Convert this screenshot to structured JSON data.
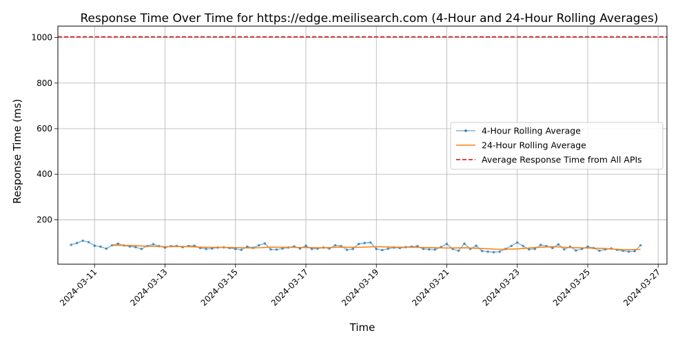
{
  "chart_data": {
    "type": "line",
    "title": "Response Time Over Time for https://edge.meilisearch.com (4-Hour and 24-Hour Rolling Averages)",
    "xlabel": "Time",
    "ylabel": "Response Time (ms)",
    "x_type": "date",
    "xlim": [
      "2024-03-09T23:00",
      "2024-03-27T06:00"
    ],
    "ylim": [
      5,
      1050
    ],
    "x_ticks": [
      "2024-03-11",
      "2024-03-13",
      "2024-03-15",
      "2024-03-17",
      "2024-03-19",
      "2024-03-21",
      "2024-03-23",
      "2024-03-25",
      "2024-03-27"
    ],
    "y_ticks": [
      200,
      400,
      600,
      800,
      1000
    ],
    "grid": true,
    "legend_position": "center-right",
    "series": [
      {
        "name": "4-Hour Rolling Average",
        "color": "#1f77b4",
        "style": "line-with-markers",
        "x": [
          "2024-03-10T08:00",
          "2024-03-10T12:00",
          "2024-03-10T16:00",
          "2024-03-10T20:00",
          "2024-03-11T00:00",
          "2024-03-11T04:00",
          "2024-03-11T08:00",
          "2024-03-11T12:00",
          "2024-03-11T16:00",
          "2024-03-11T20:00",
          "2024-03-12T00:00",
          "2024-03-12T04:00",
          "2024-03-12T08:00",
          "2024-03-12T12:00",
          "2024-03-12T16:00",
          "2024-03-12T20:00",
          "2024-03-13T00:00",
          "2024-03-13T04:00",
          "2024-03-13T08:00",
          "2024-03-13T12:00",
          "2024-03-13T16:00",
          "2024-03-13T20:00",
          "2024-03-14T00:00",
          "2024-03-14T04:00",
          "2024-03-14T08:00",
          "2024-03-14T12:00",
          "2024-03-14T16:00",
          "2024-03-14T20:00",
          "2024-03-15T00:00",
          "2024-03-15T04:00",
          "2024-03-15T08:00",
          "2024-03-15T12:00",
          "2024-03-15T16:00",
          "2024-03-15T20:00",
          "2024-03-16T00:00",
          "2024-03-16T04:00",
          "2024-03-16T08:00",
          "2024-03-16T12:00",
          "2024-03-16T16:00",
          "2024-03-16T20:00",
          "2024-03-17T00:00",
          "2024-03-17T04:00",
          "2024-03-17T08:00",
          "2024-03-17T12:00",
          "2024-03-17T16:00",
          "2024-03-17T20:00",
          "2024-03-18T00:00",
          "2024-03-18T04:00",
          "2024-03-18T08:00",
          "2024-03-18T12:00",
          "2024-03-18T16:00",
          "2024-03-18T20:00",
          "2024-03-19T00:00",
          "2024-03-19T04:00",
          "2024-03-19T08:00",
          "2024-03-19T12:00",
          "2024-03-19T16:00",
          "2024-03-19T20:00",
          "2024-03-20T00:00",
          "2024-03-20T04:00",
          "2024-03-20T08:00",
          "2024-03-20T12:00",
          "2024-03-20T16:00",
          "2024-03-20T20:00",
          "2024-03-21T00:00",
          "2024-03-21T04:00",
          "2024-03-21T08:00",
          "2024-03-21T12:00",
          "2024-03-21T16:00",
          "2024-03-21T20:00",
          "2024-03-22T00:00",
          "2024-03-22T04:00",
          "2024-03-22T08:00",
          "2024-03-22T12:00",
          "2024-03-22T16:00",
          "2024-03-22T20:00",
          "2024-03-23T00:00",
          "2024-03-23T04:00",
          "2024-03-23T08:00",
          "2024-03-23T12:00",
          "2024-03-23T16:00",
          "2024-03-23T20:00",
          "2024-03-24T00:00",
          "2024-03-24T04:00",
          "2024-03-24T08:00",
          "2024-03-24T12:00",
          "2024-03-24T16:00",
          "2024-03-24T20:00",
          "2024-03-25T00:00",
          "2024-03-25T04:00",
          "2024-03-25T08:00",
          "2024-03-25T12:00",
          "2024-03-25T16:00",
          "2024-03-25T20:00",
          "2024-03-26T00:00",
          "2024-03-26T04:00",
          "2024-03-26T08:00",
          "2024-03-26T12:00"
        ],
        "values": [
          90,
          98,
          108,
          102,
          86,
          82,
          73,
          88,
          95,
          87,
          83,
          80,
          72,
          85,
          93,
          84,
          78,
          84,
          85,
          80,
          85,
          86,
          76,
          72,
          74,
          78,
          79,
          76,
          72,
          68,
          82,
          77,
          88,
          96,
          70,
          69,
          74,
          78,
          83,
          74,
          86,
          72,
          74,
          78,
          74,
          88,
          84,
          68,
          72,
          94,
          98,
          100,
          72,
          67,
          73,
          78,
          76,
          80,
          82,
          84,
          72,
          70,
          69,
          80,
          94,
          72,
          64,
          95,
          72,
          86,
          63,
          60,
          58,
          60,
          72,
          85,
          100,
          85,
          70,
          72,
          90,
          84,
          76,
          92,
          70,
          82,
          65,
          72,
          82,
          76,
          64,
          70,
          74,
          68,
          64,
          60,
          62,
          88
        ]
      },
      {
        "name": "24-Hour Rolling Average",
        "color": "#ff7f0e",
        "style": "line",
        "x": [
          "2024-03-11T12:00",
          "2024-03-12T00:00",
          "2024-03-12T12:00",
          "2024-03-13T00:00",
          "2024-03-13T12:00",
          "2024-03-14T00:00",
          "2024-03-14T12:00",
          "2024-03-15T00:00",
          "2024-03-15T12:00",
          "2024-03-16T00:00",
          "2024-03-16T12:00",
          "2024-03-17T00:00",
          "2024-03-17T12:00",
          "2024-03-18T00:00",
          "2024-03-18T12:00",
          "2024-03-19T00:00",
          "2024-03-19T12:00",
          "2024-03-20T00:00",
          "2024-03-20T12:00",
          "2024-03-21T00:00",
          "2024-03-21T12:00",
          "2024-03-22T00:00",
          "2024-03-22T12:00",
          "2024-03-23T00:00",
          "2024-03-23T12:00",
          "2024-03-24T00:00",
          "2024-03-24T12:00",
          "2024-03-25T00:00",
          "2024-03-25T12:00",
          "2024-03-26T00:00",
          "2024-03-26T12:00"
        ],
        "values": [
          88,
          87,
          84,
          82,
          83,
          80,
          79,
          78,
          76,
          80,
          79,
          78,
          77,
          80,
          79,
          82,
          80,
          79,
          78,
          76,
          77,
          74,
          70,
          72,
          78,
          82,
          78,
          76,
          74,
          68,
          70
        ]
      },
      {
        "name": "Average Response Time from All APIs",
        "color": "#d62728",
        "style": "dashed-horizontal",
        "value": 1003
      }
    ]
  }
}
